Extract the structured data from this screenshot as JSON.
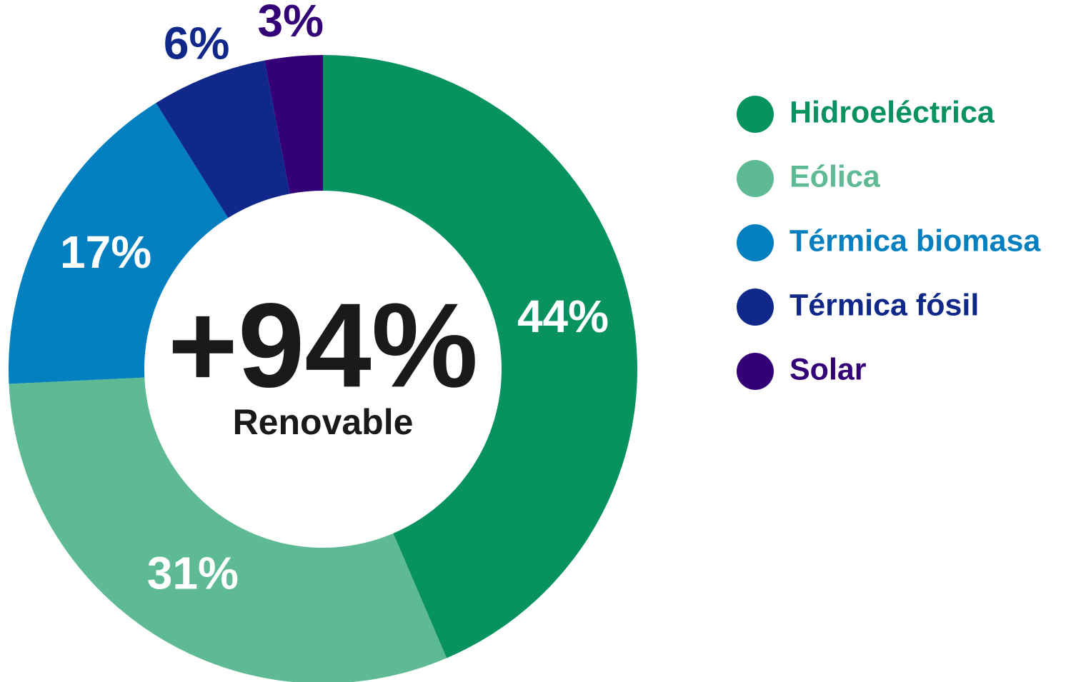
{
  "chart_data": {
    "type": "pie",
    "donut": true,
    "center_label": "+94%",
    "center_sublabel": "Renovable",
    "categories": [
      "Hidroeléctrica",
      "Eólica",
      "Térmica biomasa",
      "Térmica fósil",
      "Solar"
    ],
    "values": [
      44,
      31,
      17,
      6,
      3
    ],
    "value_labels": [
      "44%",
      "31%",
      "17%",
      "6%",
      "3%"
    ],
    "colors": [
      "#07925f",
      "#5dba94",
      "#0480c0",
      "#10288a",
      "#340078"
    ],
    "legend": "right"
  }
}
